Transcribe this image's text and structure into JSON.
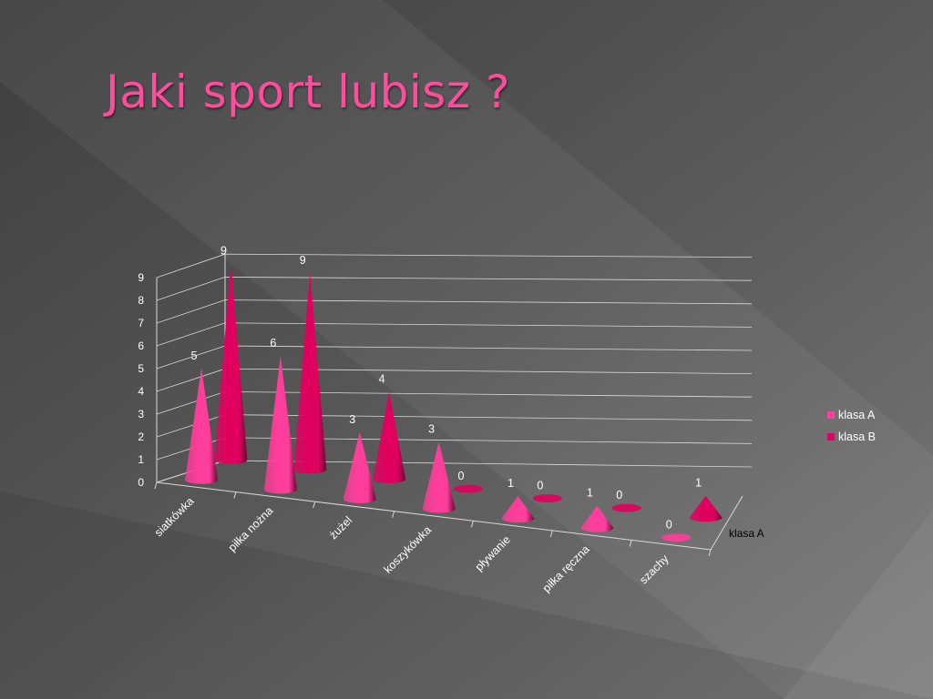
{
  "slide": {
    "title": "Jaki sport lubisz  ?"
  },
  "colors": {
    "background": "#5a5a5a",
    "title": "#ff4c9c",
    "series_a": "#ff3d9a",
    "series_b": "#e0005e",
    "grid": "#d9d9d9",
    "label_text": "#ffffff",
    "axis_series_label_text": "#000000"
  },
  "chart_data": {
    "type": "bar",
    "subtype": "3d-cone",
    "title": "",
    "xlabel": "",
    "ylabel": "",
    "categories": [
      "siatkówka",
      "piłka nożna",
      "żużel",
      "koszykówka",
      "pływanie",
      "piłka ręczna",
      "szachy"
    ],
    "series": [
      {
        "name": "klasa A",
        "values": [
          5,
          6,
          3,
          3,
          1,
          1,
          0
        ]
      },
      {
        "name": "klasa B",
        "values": [
          9,
          9,
          4,
          0,
          0,
          0,
          1
        ]
      }
    ],
    "depth_axis_label": "klasa A",
    "ylim": [
      0,
      9
    ],
    "yticks": [
      0,
      1,
      2,
      3,
      4,
      5,
      6,
      7,
      8,
      9
    ],
    "grid": true,
    "legend_position": "right",
    "data_labels": true
  }
}
